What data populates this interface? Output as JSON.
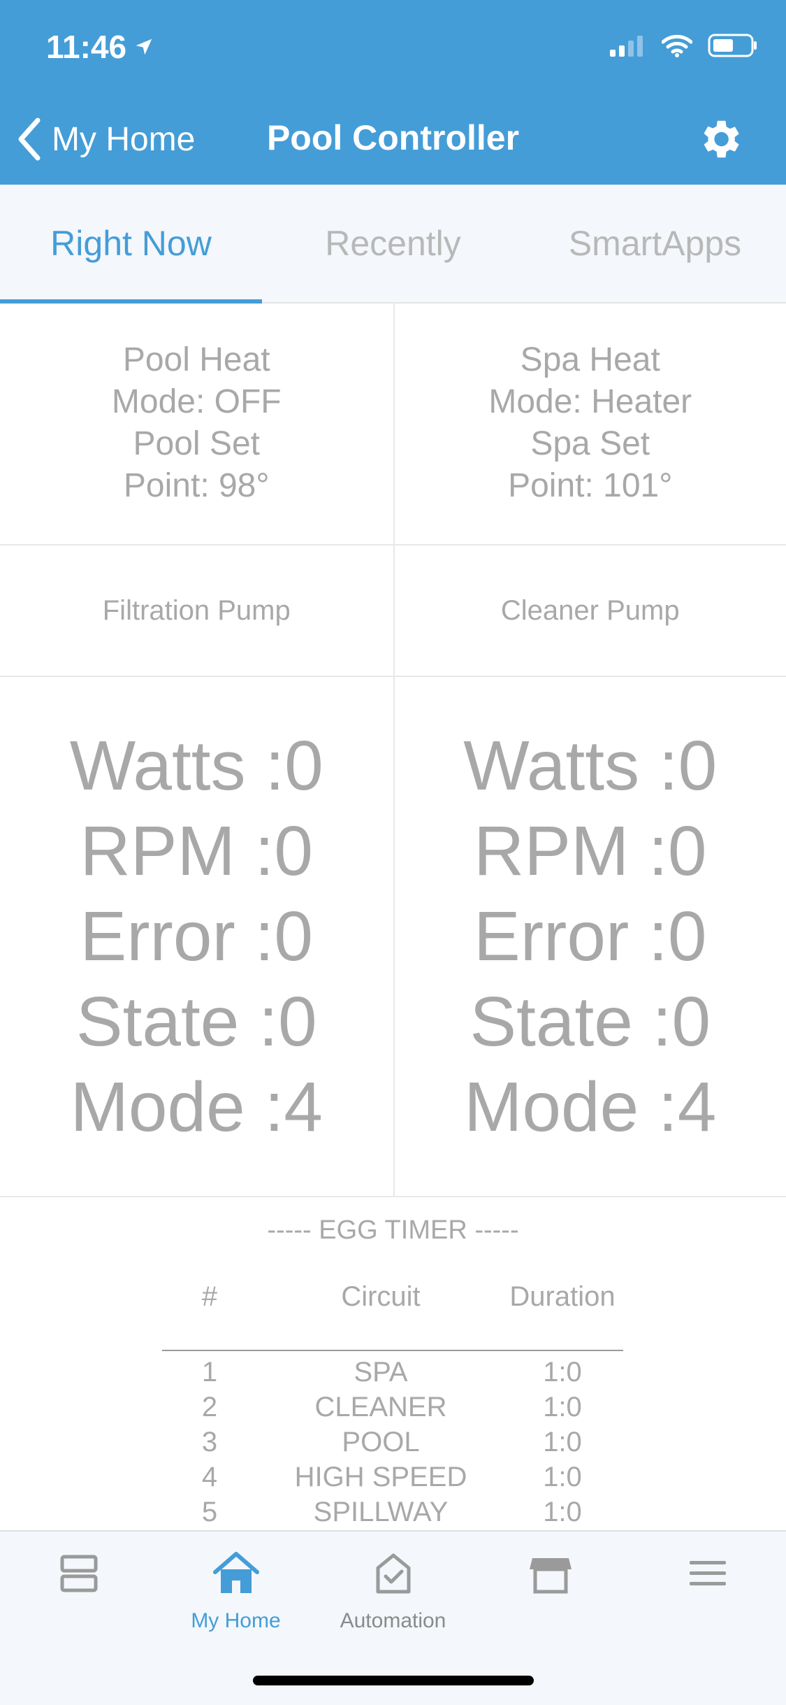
{
  "status_bar": {
    "time": "11:46"
  },
  "nav": {
    "back_label": "My Home",
    "title": "Pool Controller"
  },
  "tabs": [
    {
      "label": "Right Now",
      "active": true
    },
    {
      "label": "Recently",
      "active": false
    },
    {
      "label": "SmartApps",
      "active": false
    }
  ],
  "heat": {
    "pool": [
      "Pool Heat",
      "Mode: OFF",
      "Pool Set",
      "Point: 98°"
    ],
    "spa": [
      "Spa Heat",
      "Mode: Heater",
      "Spa Set",
      "Point: 101°"
    ]
  },
  "pumps": {
    "filtration": {
      "name": "Filtration Pump",
      "stats": [
        "Watts :0",
        "RPM :0",
        "Error :0",
        "State :0",
        "Mode :4"
      ]
    },
    "cleaner": {
      "name": "Cleaner Pump",
      "stats": [
        "Watts :0",
        "RPM :0",
        "Error :0",
        "State :0",
        "Mode :4"
      ]
    }
  },
  "egg_timer": {
    "title": "----- EGG TIMER -----",
    "headers": {
      "num": "#",
      "circuit": "Circuit",
      "duration": "Duration"
    },
    "rows": [
      {
        "num": "1",
        "circuit": "SPA",
        "duration": "1:0"
      },
      {
        "num": "2",
        "circuit": "CLEANER",
        "duration": "1:0"
      },
      {
        "num": "3",
        "circuit": "POOL",
        "duration": "1:0"
      },
      {
        "num": "4",
        "circuit": "HIGH SPEED",
        "duration": "1:0"
      },
      {
        "num": "5",
        "circuit": "SPILLWAY",
        "duration": "1:0"
      }
    ]
  },
  "bottom_tabs": [
    {
      "label": "",
      "icon": "dashboard-icon"
    },
    {
      "label": "My Home",
      "icon": "home-icon",
      "active": true
    },
    {
      "label": "Automation",
      "icon": "automation-icon"
    },
    {
      "label": "",
      "icon": "marketplace-icon"
    },
    {
      "label": "",
      "icon": "menu-icon"
    }
  ],
  "colors": {
    "accent": "#449dd7",
    "text_muted": "#a8a8a8",
    "tab_bg": "#f4f7fb"
  }
}
